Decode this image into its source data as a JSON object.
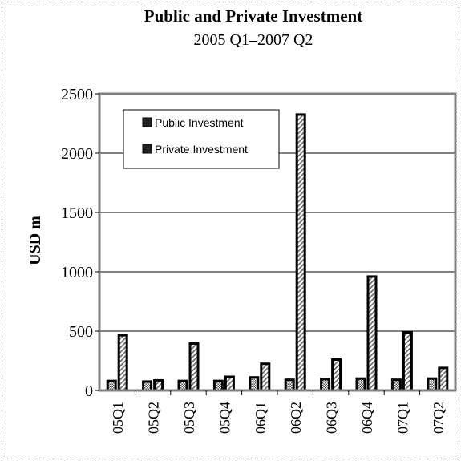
{
  "chart_data": {
    "type": "bar",
    "title": "Public and Private Investment",
    "subtitle": "2005 Q1–2007 Q2",
    "xlabel": "",
    "ylabel": "USD m",
    "ylim": [
      0,
      2500
    ],
    "yticks": [
      "0",
      "500",
      "1000",
      "1500",
      "2000",
      "2500"
    ],
    "categories": [
      "05Q1",
      "05Q2",
      "05Q3",
      "05Q4",
      "06Q1",
      "06Q2",
      "06Q3",
      "06Q4",
      "07Q1",
      "07Q2"
    ],
    "series": [
      {
        "name": "Public Investment",
        "values": [
          80,
          75,
          80,
          80,
          110,
          90,
          95,
          100,
          90,
          100
        ]
      },
      {
        "name": "Private Investment",
        "values": [
          465,
          85,
          395,
          115,
          225,
          2325,
          260,
          960,
          490,
          190
        ]
      }
    ],
    "grid": true,
    "legend_position": "top-left"
  }
}
